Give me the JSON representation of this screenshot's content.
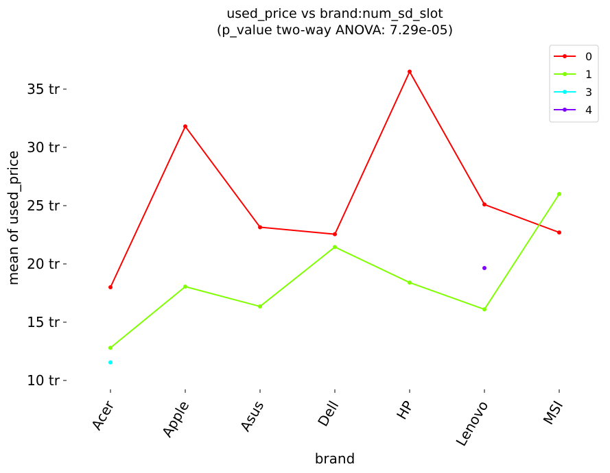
{
  "chart_data": {
    "type": "line",
    "title": "used_price vs brand:num_sd_slot",
    "subtitle": "(p_value two-way ANOVA: 7.29e-05)",
    "xlabel": "brand",
    "ylabel": "mean of used_price",
    "categories": [
      "Acer",
      "Apple",
      "Asus",
      "Dell",
      "HP",
      "Lenovo",
      "MSI"
    ],
    "yticks": [
      10,
      15,
      20,
      25,
      30,
      35
    ],
    "ytick_labels": [
      "10 tr",
      "15 tr",
      "20 tr",
      "25 tr",
      "30 tr",
      "35 tr"
    ],
    "ylim": [
      9.3,
      38.8
    ],
    "grid": false,
    "legend_position": "top-right",
    "series": [
      {
        "name": "0",
        "color": "#ff0000",
        "values": [
          18.0,
          31.8,
          23.15,
          22.55,
          36.5,
          25.1,
          22.7
        ]
      },
      {
        "name": "1",
        "color": "#80ff00",
        "values": [
          12.8,
          18.05,
          16.35,
          21.45,
          18.4,
          16.1,
          26.0
        ]
      },
      {
        "name": "3",
        "color": "#00ffff",
        "values": [
          11.55,
          null,
          null,
          null,
          null,
          null,
          null
        ]
      },
      {
        "name": "4",
        "color": "#8000ff",
        "values": [
          null,
          null,
          null,
          null,
          null,
          19.65,
          null
        ]
      }
    ]
  }
}
